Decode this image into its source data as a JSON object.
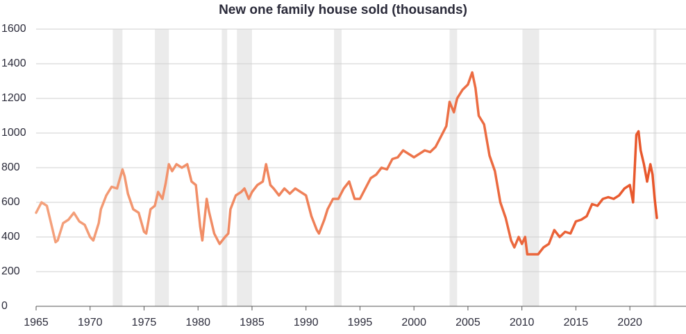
{
  "chart_data": {
    "type": "line",
    "title": "New one family house sold (thousands)",
    "x": [
      1965,
      1965.5,
      1966,
      1966.5,
      1966.8,
      1967,
      1967.5,
      1968,
      1968.5,
      1969,
      1969.5,
      1970,
      1970.3,
      1970.8,
      1971,
      1971.5,
      1972,
      1972.5,
      1973,
      1973.2,
      1973.5,
      1974,
      1974.5,
      1975,
      1975.2,
      1975.6,
      1976,
      1976.3,
      1976.7,
      1977,
      1977.3,
      1977.6,
      1978,
      1978.5,
      1979,
      1979.4,
      1979.8,
      1980.2,
      1980.4,
      1980.8,
      1981,
      1981.5,
      1982,
      1982.5,
      1982.8,
      1983,
      1983.5,
      1984,
      1984.3,
      1984.7,
      1985,
      1985.5,
      1986,
      1986.3,
      1986.7,
      1987,
      1987.5,
      1988,
      1988.5,
      1989,
      1989.5,
      1990,
      1990.5,
      1991,
      1991.2,
      1991.7,
      1992,
      1992.5,
      1993,
      1993.5,
      1994,
      1994.5,
      1995,
      1995.5,
      1996,
      1996.5,
      1997,
      1997.5,
      1998,
      1998.5,
      1999,
      1999.5,
      2000,
      2000.5,
      2001,
      2001.5,
      2002,
      2002.5,
      2003,
      2003.3,
      2003.7,
      2004,
      2004.5,
      2005,
      2005.4,
      2005.7,
      2006,
      2006.5,
      2007,
      2007.5,
      2008,
      2008.5,
      2009,
      2009.3,
      2009.7,
      2010,
      2010.3,
      2010.5,
      2011,
      2011.5,
      2012,
      2012.5,
      2013,
      2013.5,
      2014,
      2014.5,
      2015,
      2015.5,
      2016,
      2016.5,
      2017,
      2017.5,
      2018,
      2018.5,
      2019,
      2019.5,
      2020,
      2020.3,
      2020.6,
      2020.8,
      2021,
      2021.3,
      2021.6,
      2021.9,
      2022.1,
      2022.3,
      2022.5
    ],
    "series": [
      {
        "name": "New one family house sold",
        "color": [
          "#f4a27d",
          "#e8562a"
        ],
        "values": [
          540,
          600,
          580,
          450,
          370,
          380,
          480,
          500,
          540,
          490,
          470,
          400,
          380,
          480,
          560,
          640,
          690,
          680,
          790,
          750,
          650,
          560,
          540,
          430,
          420,
          560,
          580,
          660,
          620,
          710,
          820,
          780,
          820,
          800,
          820,
          720,
          700,
          460,
          380,
          620,
          550,
          420,
          360,
          400,
          420,
          560,
          640,
          660,
          680,
          620,
          660,
          700,
          720,
          820,
          700,
          680,
          640,
          680,
          650,
          680,
          660,
          640,
          520,
          440,
          420,
          500,
          560,
          620,
          620,
          680,
          720,
          620,
          620,
          680,
          740,
          760,
          800,
          790,
          850,
          860,
          900,
          880,
          860,
          880,
          900,
          890,
          920,
          980,
          1040,
          1180,
          1120,
          1200,
          1250,
          1280,
          1350,
          1260,
          1100,
          1050,
          870,
          780,
          600,
          510,
          380,
          340,
          400,
          360,
          400,
          300,
          300,
          300,
          340,
          360,
          440,
          400,
          430,
          420,
          490,
          500,
          520,
          590,
          580,
          620,
          630,
          620,
          640,
          680,
          700,
          600,
          990,
          1010,
          900,
          820,
          720,
          820,
          760,
          620,
          510
        ]
      }
    ],
    "shaded_periods": [
      [
        1972.1,
        1973.0
      ],
      [
        1976.0,
        1977.3
      ],
      [
        1982.2,
        1982.7
      ],
      [
        1983.6,
        1985.0
      ],
      [
        1992.6,
        1993.3
      ],
      [
        2003.3,
        2004.0
      ],
      [
        2010.05,
        2011.6
      ],
      [
        2022.2,
        2022.45
      ]
    ],
    "shade_color": "#ebebeb",
    "xlim": [
      1965,
      2025.2
    ],
    "xticks": [
      1965,
      1970,
      1975,
      1980,
      1985,
      1990,
      1995,
      2000,
      2005,
      2010,
      2015,
      2020
    ],
    "ylim": [
      0,
      1600
    ],
    "yticks": [
      0,
      200,
      400,
      600,
      800,
      1000,
      1200,
      1400,
      1600
    ],
    "grid": true
  }
}
